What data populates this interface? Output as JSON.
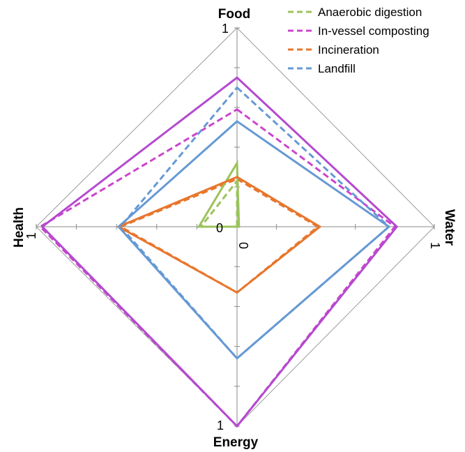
{
  "chart_data": {
    "type": "radar",
    "axes": [
      "Food",
      "Water",
      "Energy",
      "Health"
    ],
    "range": [
      0,
      1
    ],
    "tick_labels": {
      "Food": [
        "1"
      ],
      "Water": [
        "1"
      ],
      "Energy": [
        "1"
      ],
      "Health": [
        "1"
      ],
      "center": [
        "0",
        "0"
      ]
    },
    "grid": "outer-diamond-only",
    "legend_position": "top-right",
    "series": [
      {
        "name": "Anaerobic digestion",
        "style": "dashed",
        "color": "#9bc35a",
        "values": [
          0.23,
          0.0,
          0.0,
          0.18
        ]
      },
      {
        "name": "In-vessel composting",
        "style": "dashed",
        "color": "#cc44cc",
        "values": [
          0.59,
          0.8,
          1.0,
          0.98
        ]
      },
      {
        "name": "Incineration",
        "style": "dashed",
        "color": "#e8762c",
        "values": [
          0.24,
          0.41,
          0.33,
          0.58
        ]
      },
      {
        "name": "Landfill",
        "style": "dashed",
        "color": "#6699d4",
        "values": [
          0.7,
          0.77,
          0.66,
          0.58
        ]
      },
      {
        "name": "",
        "style": "solid",
        "color": "#9bc35a",
        "values": [
          0.32,
          0.01,
          0.0,
          0.19
        ]
      },
      {
        "name": "",
        "style": "solid",
        "color": "#b44ad0",
        "values": [
          0.75,
          0.81,
          1.0,
          0.97
        ]
      },
      {
        "name": "",
        "style": "solid",
        "color": "#e8762c",
        "values": [
          0.25,
          0.42,
          0.33,
          0.59
        ]
      },
      {
        "name": "",
        "style": "solid",
        "color": "#6699d4",
        "values": [
          0.53,
          0.77,
          0.66,
          0.59
        ]
      }
    ]
  }
}
